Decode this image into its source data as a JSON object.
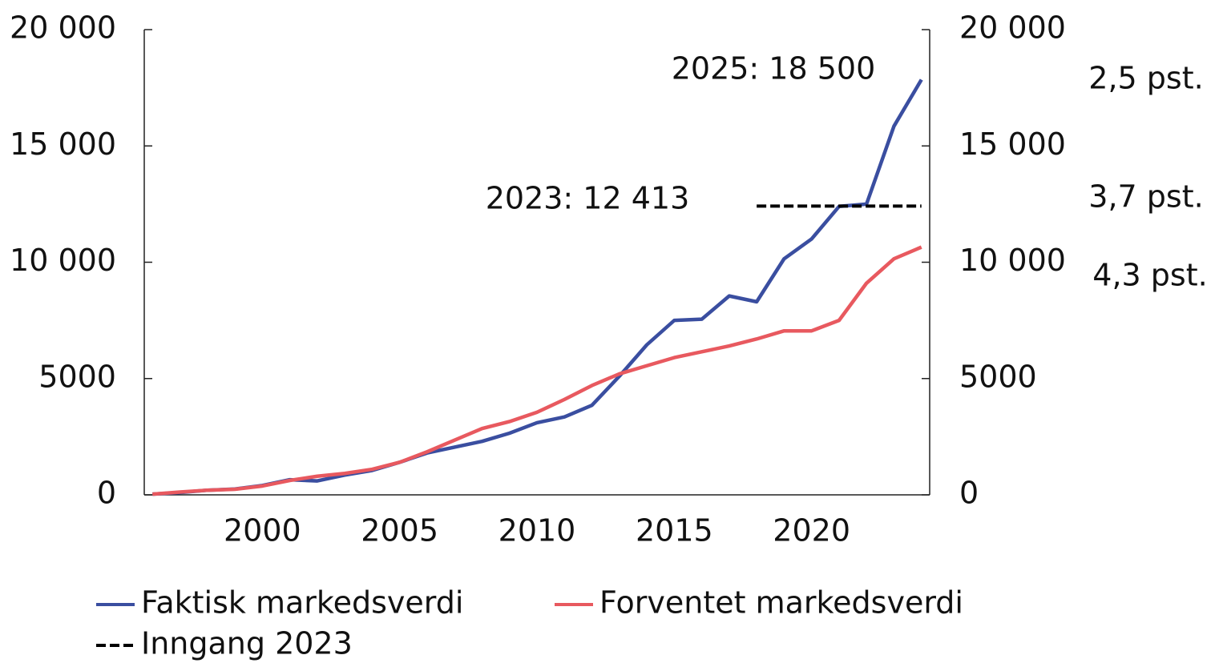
{
  "chart_data": {
    "type": "line",
    "x": [
      1996,
      1997,
      1998,
      1999,
      2000,
      2001,
      2002,
      2003,
      2004,
      2005,
      2006,
      2007,
      2008,
      2009,
      2010,
      2011,
      2012,
      2013,
      2014,
      2015,
      2016,
      2017,
      2018,
      2019,
      2020,
      2021,
      2022,
      2023,
      2024
    ],
    "xlim": [
      1995.7,
      2024.3
    ],
    "xticks": [
      2000,
      2005,
      2010,
      2015,
      2020
    ],
    "ylim": [
      0,
      20000
    ],
    "yticks": [
      0,
      {
        "value": 5000,
        "label": "5000"
      },
      {
        "value": 10000,
        "label": "10 000"
      },
      {
        "value": 15000,
        "label": "15 000"
      },
      {
        "value": 20000,
        "label": "20 000"
      }
    ],
    "y2lim": [
      0,
      20000
    ],
    "y2ticks": [
      0,
      {
        "value": 5000,
        "label": "5000"
      },
      {
        "value": 10000,
        "label": "10 000"
      },
      {
        "value": 15000,
        "label": "15 000"
      },
      {
        "value": 20000,
        "label": "20 000"
      }
    ],
    "series": [
      {
        "name": "Faktisk markedsverdi",
        "color": "#3a4ea0",
        "dash": false,
        "values": [
          30,
          100,
          200,
          250,
          400,
          650,
          600,
          850,
          1050,
          1400,
          1800,
          2050,
          2300,
          2650,
          3100,
          3350,
          3850,
          5100,
          6450,
          7500,
          7550,
          8550,
          8300,
          10150,
          11000,
          12400,
          12500,
          15850,
          17850
        ]
      },
      {
        "name": "Forventet markedsverdi",
        "color": "#e8595f",
        "dash": false,
        "values": [
          30,
          120,
          200,
          240,
          380,
          620,
          800,
          920,
          1100,
          1400,
          1850,
          2350,
          2850,
          3150,
          3550,
          4100,
          4700,
          5200,
          5550,
          5900,
          6150,
          6400,
          6700,
          7050,
          7050,
          7500,
          9100,
          10150,
          10650
        ]
      },
      {
        "name": "Inngang 2023",
        "color": "#000000",
        "dash": true,
        "x": [
          2018,
          2024
        ],
        "values": [
          12413,
          12413
        ]
      }
    ],
    "annotations": [
      "2025: 18 500",
      "2023: 12 413",
      "2,5 pst.",
      "3,7 pst.",
      "4,3 pst."
    ]
  }
}
